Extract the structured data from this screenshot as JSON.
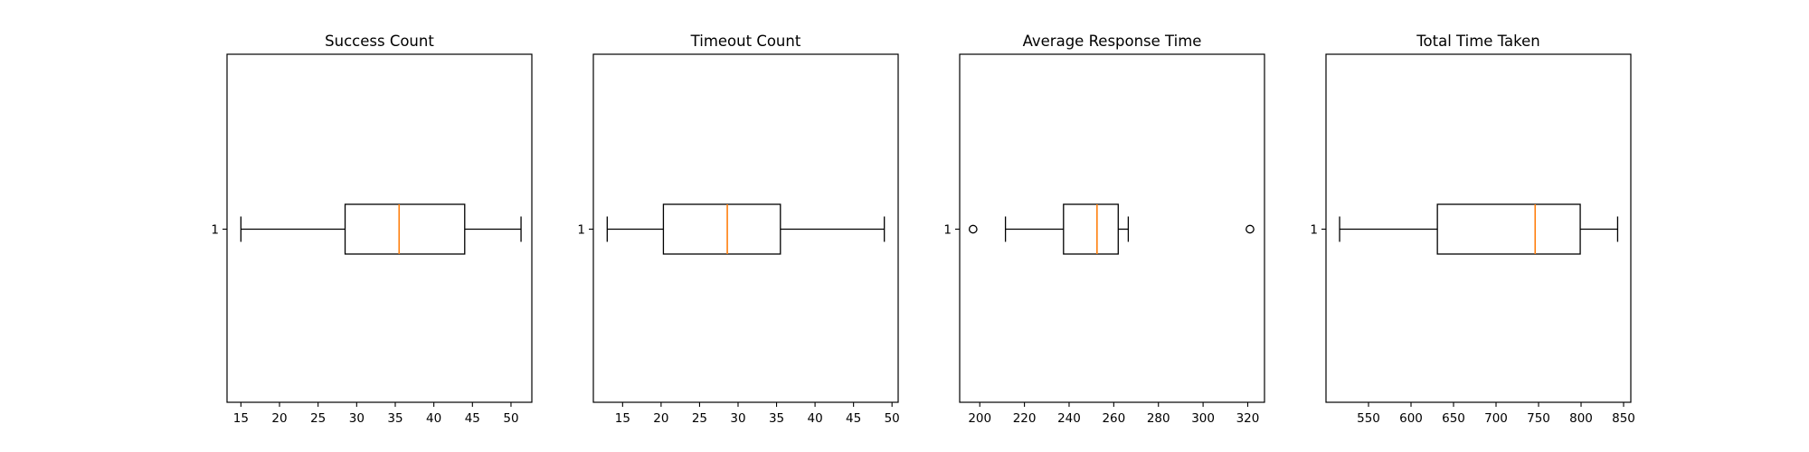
{
  "chart_data": [
    {
      "type": "boxplot",
      "orientation": "horizontal",
      "title": "Success Count",
      "xlim": [
        13.2,
        52.7
      ],
      "xticks": [
        15,
        20,
        25,
        30,
        35,
        40,
        45,
        50
      ],
      "yticks": [
        "1"
      ],
      "box": {
        "whisker_low": 15,
        "q1": 28.5,
        "median": 35.5,
        "q3": 44,
        "whisker_high": 51.3,
        "outliers": []
      },
      "colors": {
        "median": "#ff7f0e",
        "box": "#000000"
      }
    },
    {
      "type": "boxplot",
      "orientation": "horizontal",
      "title": "Timeout Count",
      "xlim": [
        11.2,
        50.8
      ],
      "xticks": [
        15,
        20,
        25,
        30,
        35,
        40,
        45,
        50
      ],
      "yticks": [
        "1"
      ],
      "box": {
        "whisker_low": 13,
        "q1": 20.3,
        "median": 28.6,
        "q3": 35.5,
        "whisker_high": 49,
        "outliers": []
      },
      "colors": {
        "median": "#ff7f0e",
        "box": "#000000"
      }
    },
    {
      "type": "boxplot",
      "orientation": "horizontal",
      "title": "Average Response Time",
      "xlim": [
        191,
        327.5
      ],
      "xticks": [
        200,
        220,
        240,
        260,
        280,
        300,
        320
      ],
      "yticks": [
        "1"
      ],
      "box": {
        "whisker_low": 211.5,
        "q1": 237.5,
        "median": 252.5,
        "q3": 262,
        "whisker_high": 266.5,
        "outliers": [
          197,
          321
        ]
      },
      "colors": {
        "median": "#ff7f0e",
        "box": "#000000"
      }
    },
    {
      "type": "boxplot",
      "orientation": "horizontal",
      "title": "Total Time Taken",
      "xlim": [
        500,
        858.5
      ],
      "xticks": [
        550,
        600,
        650,
        700,
        750,
        800,
        850
      ],
      "yticks": [
        "1"
      ],
      "box": {
        "whisker_low": 516,
        "q1": 631,
        "median": 746,
        "q3": 799,
        "whisker_high": 843,
        "outliers": []
      },
      "colors": {
        "median": "#ff7f0e",
        "box": "#000000"
      }
    }
  ]
}
